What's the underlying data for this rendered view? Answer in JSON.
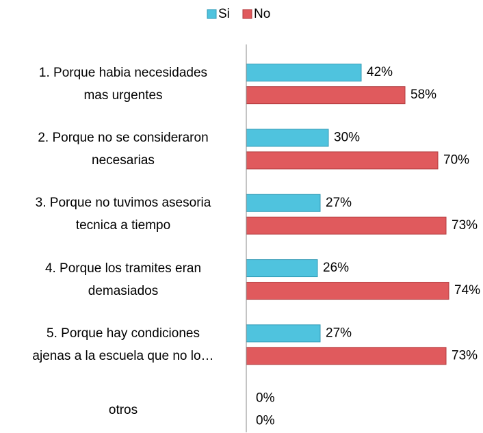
{
  "chart_data": {
    "type": "hbar",
    "categories": [
      "1. Porque habia necesidades\nmas urgentes",
      "2. Porque no se consideraron\nnecesarias",
      "3. Porque no tuvimos asesoria\ntecnica a tiempo",
      "4. Porque los tramites eran\ndemasiados",
      "5. Porque hay condiciones\najenas a la escuela que no lo…",
      "otros"
    ],
    "series": [
      {
        "name": "Si",
        "color": "#4fc3de",
        "values": [
          42,
          30,
          27,
          26,
          27,
          0
        ],
        "value_labels": [
          "42%",
          "30%",
          "27%",
          "26%",
          "27%",
          "0%"
        ]
      },
      {
        "name": "No",
        "color": "#e05a5d",
        "values": [
          58,
          70,
          73,
          74,
          73,
          0
        ],
        "value_labels": [
          "58%",
          "70%",
          "73%",
          "74%",
          "73%",
          "0%"
        ]
      }
    ],
    "xlim": [
      0,
      100
    ],
    "legend": "top"
  }
}
